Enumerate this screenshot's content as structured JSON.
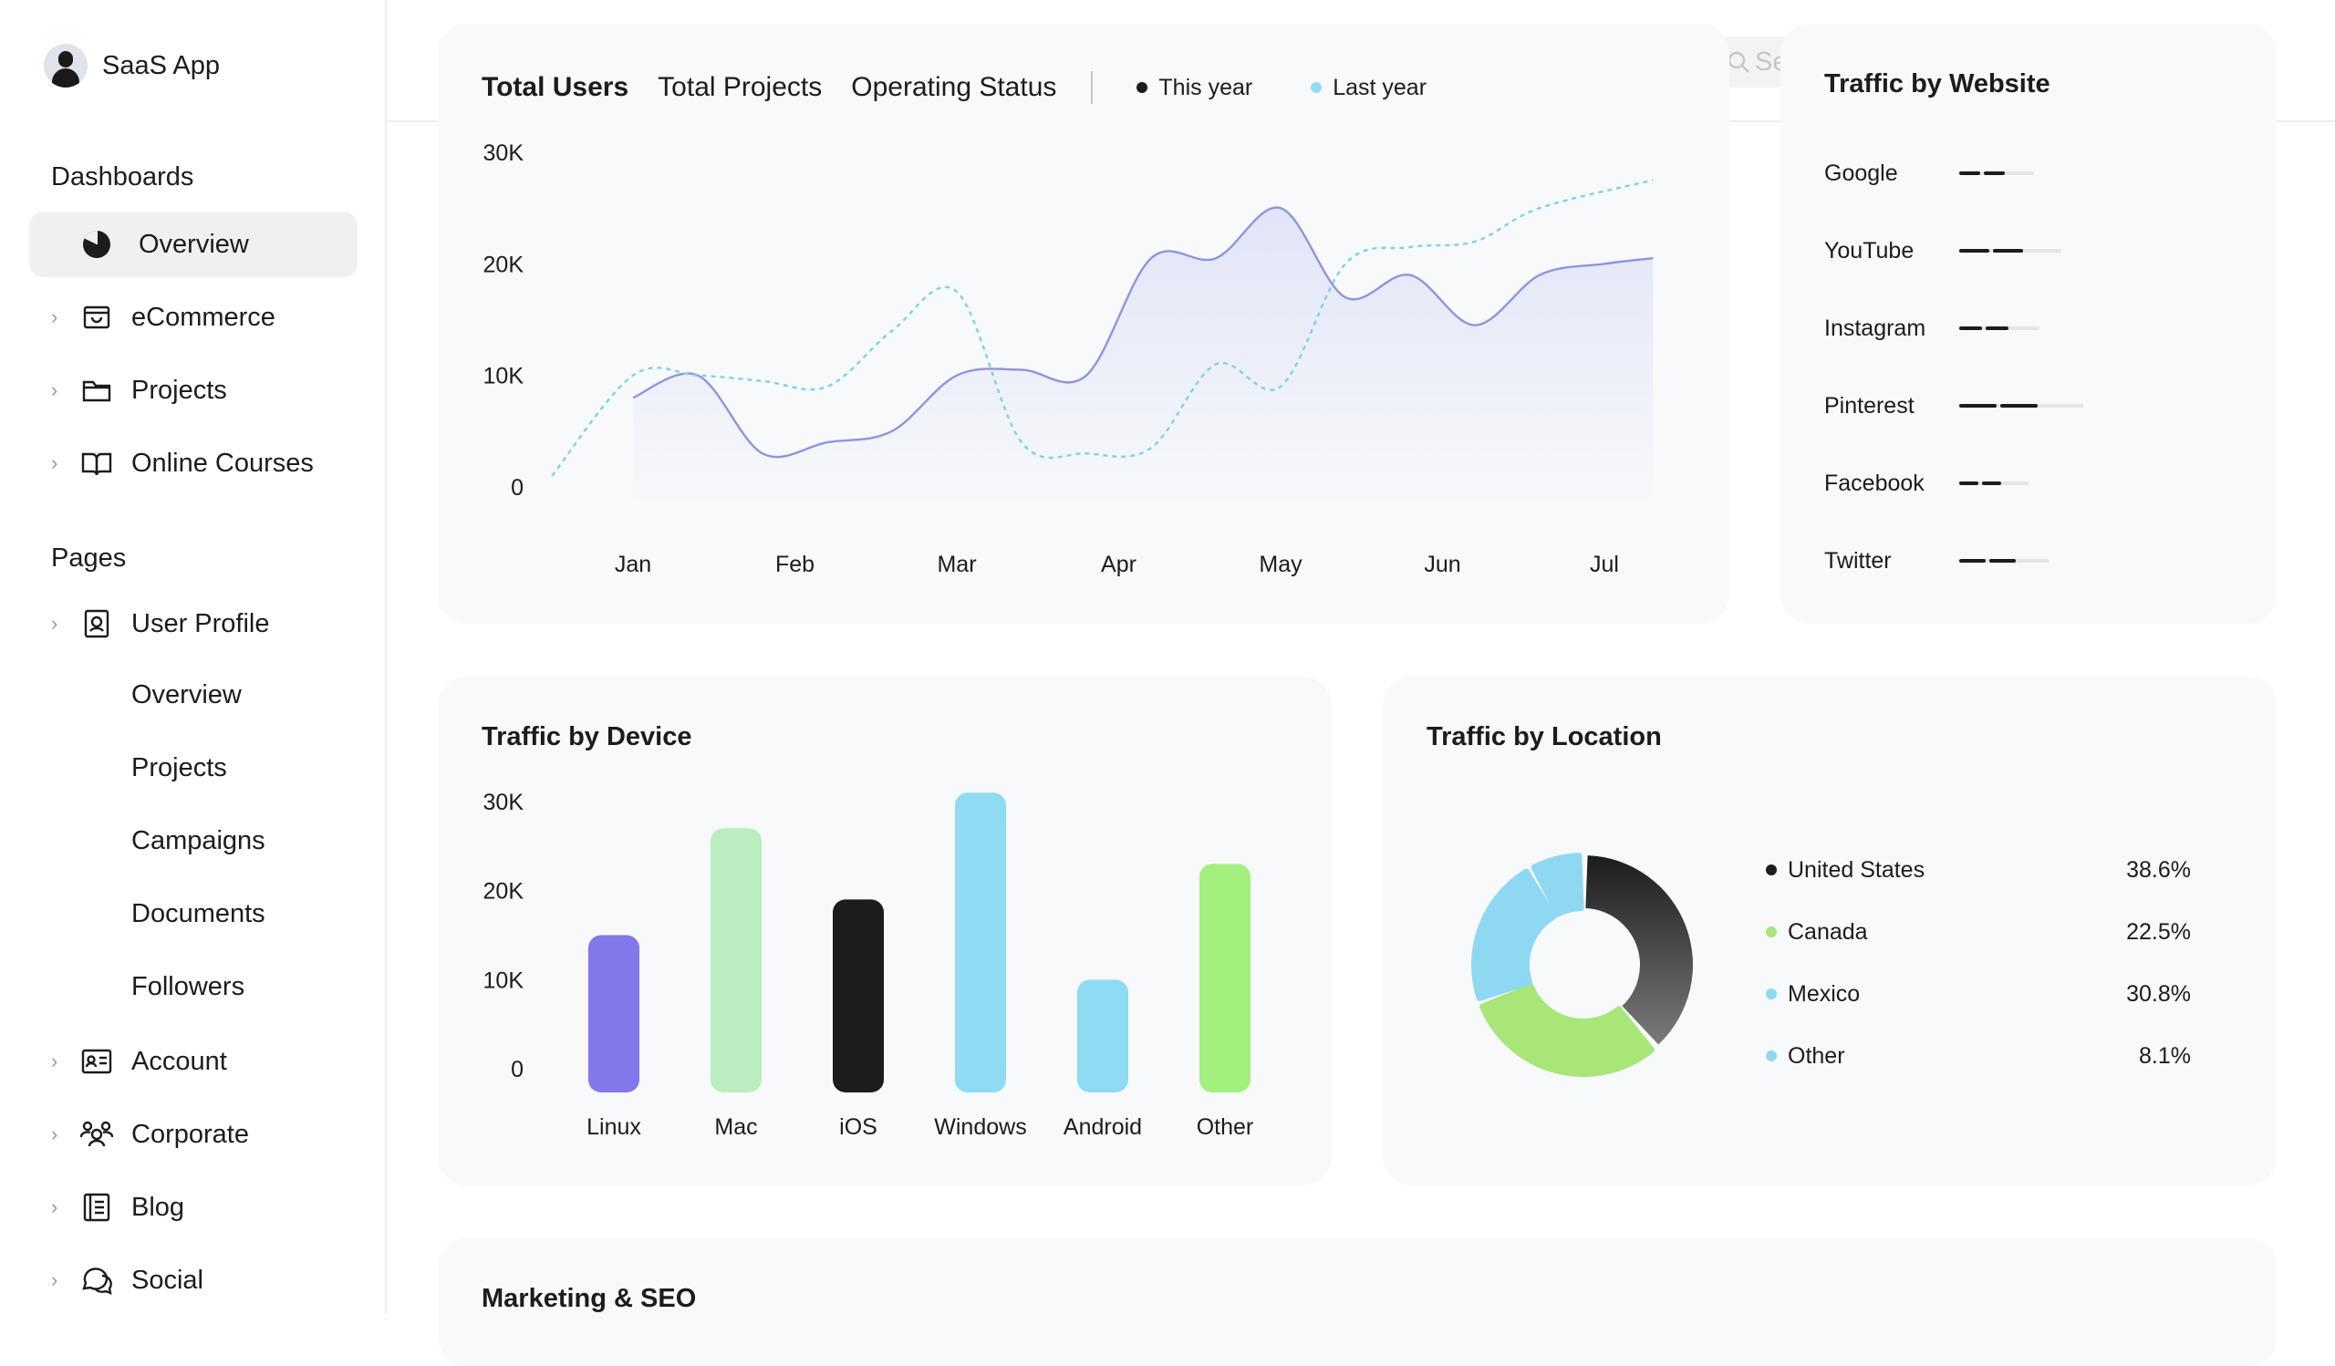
{
  "app": {
    "name": "SaaS App"
  },
  "sidebar": {
    "dashboards_title": "Dashboards",
    "dashboards": [
      {
        "label": "Overview",
        "icon": "pie-chart-icon",
        "active": true
      },
      {
        "label": "eCommerce",
        "icon": "shopping-bag-icon"
      },
      {
        "label": "Projects",
        "icon": "folder-icon"
      },
      {
        "label": "Online Courses",
        "icon": "book-open-icon"
      }
    ],
    "pages_title": "Pages",
    "user_profile": {
      "label": "User Profile",
      "icon": "identification-badge-icon",
      "children": [
        "Overview",
        "Projects",
        "Campaigns",
        "Documents",
        "Followers"
      ]
    },
    "pages": [
      {
        "label": "Account",
        "icon": "identification-card-icon"
      },
      {
        "label": "Corporate",
        "icon": "users-three-icon"
      },
      {
        "label": "Blog",
        "icon": "notebook-icon"
      },
      {
        "label": "Social",
        "icon": "chats-icon"
      }
    ]
  },
  "search": {
    "placeholder": "Se"
  },
  "total_users": {
    "tabs": [
      "Total Users",
      "Total Projects",
      "Operating Status"
    ],
    "active_tab": "Total Users",
    "legend": [
      {
        "label": "This year",
        "color": "#1c1c1c"
      },
      {
        "label": "Last year",
        "color": "#94dcf3"
      }
    ]
  },
  "traffic_website": {
    "title": "Traffic by Website",
    "items": [
      {
        "label": "Google",
        "value": 0.35
      },
      {
        "label": "YouTube",
        "value": 0.6
      },
      {
        "label": "Instagram",
        "value": 0.4
      },
      {
        "label": "Pinterest",
        "value": 0.8
      },
      {
        "label": "Facebook",
        "value": 0.3
      },
      {
        "label": "Twitter",
        "value": 0.48
      }
    ]
  },
  "traffic_device": {
    "title": "Traffic by Device"
  },
  "traffic_location": {
    "title": "Traffic by Location",
    "items": [
      {
        "label": "United States",
        "value": "38.6%",
        "color": "#1c1c1c"
      },
      {
        "label": "Canada",
        "value": "22.5%",
        "color": "#a8e67a"
      },
      {
        "label": "Mexico",
        "value": "30.8%",
        "color": "#8fd8f2"
      },
      {
        "label": "Other",
        "value": "8.1%",
        "color": "#8fd8f2"
      }
    ]
  },
  "marketing": {
    "title": "Marketing & SEO"
  },
  "chart_data": [
    {
      "type": "line",
      "x": [
        "Jan",
        "Feb",
        "Mar",
        "Apr",
        "May",
        "Jun",
        "Jul"
      ],
      "yticks": [
        "0",
        "10K",
        "20K",
        "30K"
      ],
      "ylim": [
        0,
        30000
      ],
      "series": [
        {
          "name": "This year",
          "color": "#8e95dc",
          "x": [
            0,
            0.4,
            0.8,
            1.2,
            1.6,
            2.0,
            2.4,
            2.8,
            3.2,
            3.6,
            4.0,
            4.4,
            4.8,
            5.2,
            5.6,
            6.0,
            6.3
          ],
          "values": [
            8000,
            10000,
            3000,
            4000,
            5000,
            10000,
            10500,
            10000,
            20500,
            20500,
            25000,
            17000,
            19000,
            14500,
            19000,
            20000,
            20500
          ]
        },
        {
          "name": "Last year",
          "color": "#7dd3e6",
          "x": [
            -0.5,
            0,
            0.4,
            0.8,
            1.2,
            1.6,
            2.0,
            2.4,
            2.8,
            3.2,
            3.6,
            4.0,
            4.4,
            4.8,
            5.2,
            5.6,
            6.3
          ],
          "values": [
            1000,
            10000,
            10000,
            9500,
            9000,
            14000,
            17500,
            4000,
            3000,
            3500,
            11000,
            9000,
            20000,
            21500,
            22000,
            25000,
            27500
          ]
        }
      ]
    },
    {
      "type": "bar",
      "categories": [
        "Linux",
        "Mac",
        "iOS",
        "Windows",
        "Android",
        "Other"
      ],
      "values": [
        15000,
        27000,
        19000,
        31000,
        10000,
        23000
      ],
      "colors": [
        "#8178eb",
        "#bbedc0",
        "#1c1c1c",
        "#8edbf3",
        "#8edbf3",
        "#a3f07f"
      ],
      "yticks": [
        "0",
        "10K",
        "20K",
        "30K"
      ],
      "ylim": [
        0,
        30000
      ]
    },
    {
      "type": "pie",
      "categories": [
        "United States",
        "Canada",
        "Mexico",
        "Other"
      ],
      "values": [
        38.6,
        22.5,
        30.8,
        8.1
      ]
    }
  ]
}
